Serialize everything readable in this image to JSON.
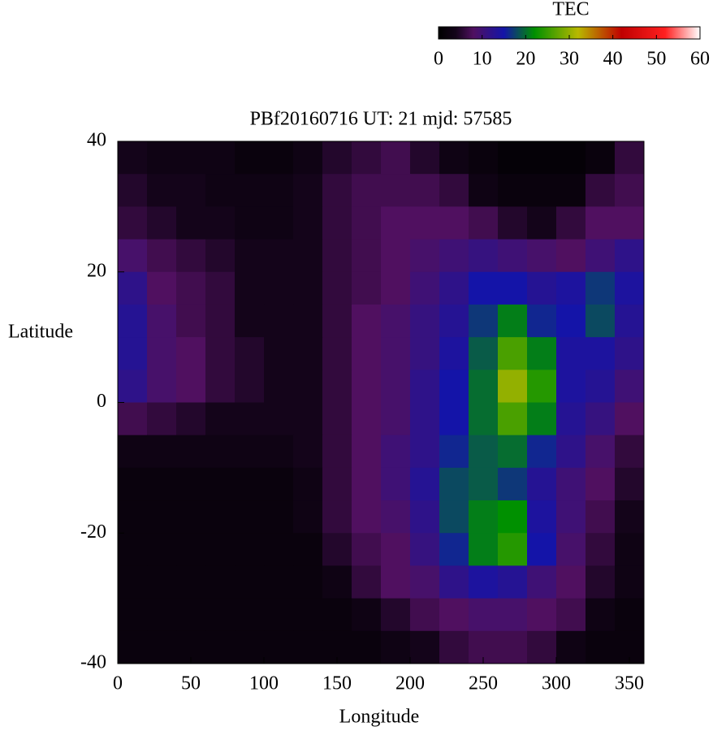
{
  "chart_data": {
    "type": "heatmap",
    "title": "PBf20160716  UT: 21  mjd: 57585",
    "xlabel": "Longitude",
    "ylabel": "Latitude",
    "colorbar_label": "TEC",
    "x": [
      10,
      30,
      50,
      70,
      90,
      110,
      130,
      150,
      170,
      190,
      210,
      230,
      250,
      270,
      290,
      310,
      330,
      350
    ],
    "y": [
      37.5,
      32.5,
      27.5,
      22.5,
      17.5,
      12.5,
      7.5,
      2.5,
      -2.5,
      -7.5,
      -12.5,
      -17.5,
      -22.5,
      -27.5,
      -32.5,
      -37.5
    ],
    "z": [
      [
        4,
        3,
        3,
        3,
        2,
        2,
        3,
        5,
        6,
        7,
        5,
        3,
        2,
        1,
        1,
        1,
        2,
        6
      ],
      [
        5,
        4,
        4,
        3,
        3,
        3,
        4,
        6,
        7,
        7,
        7,
        6,
        3,
        2,
        2,
        2,
        6,
        7
      ],
      [
        6,
        5,
        4,
        4,
        3,
        3,
        4,
        6,
        7,
        8,
        8,
        8,
        7,
        5,
        4,
        6,
        8,
        8
      ],
      [
        9,
        7,
        6,
        5,
        4,
        4,
        4,
        6,
        7,
        8,
        9,
        10,
        11,
        10,
        9,
        8,
        10,
        12
      ],
      [
        12,
        8,
        7,
        6,
        4,
        4,
        4,
        6,
        7,
        8,
        10,
        12,
        15,
        15,
        13,
        14,
        17,
        14
      ],
      [
        13,
        9,
        7,
        6,
        4,
        4,
        4,
        6,
        8,
        9,
        11,
        13,
        17,
        21,
        16,
        15,
        18,
        13
      ],
      [
        13,
        9,
        8,
        6,
        5,
        4,
        4,
        6,
        8,
        9,
        11,
        14,
        19,
        26,
        21,
        14,
        14,
        12
      ],
      [
        12,
        9,
        8,
        6,
        5,
        4,
        4,
        6,
        8,
        9,
        12,
        15,
        20,
        30,
        24,
        14,
        13,
        10
      ],
      [
        7,
        6,
        5,
        4,
        4,
        4,
        4,
        6,
        8,
        9,
        12,
        15,
        20,
        26,
        21,
        13,
        11,
        8
      ],
      [
        3,
        3,
        3,
        3,
        3,
        3,
        4,
        6,
        8,
        10,
        12,
        16,
        19,
        20,
        16,
        12,
        9,
        6
      ],
      [
        2,
        2,
        2,
        2,
        2,
        2,
        3,
        6,
        8,
        10,
        13,
        18,
        19,
        17,
        13,
        10,
        8,
        5
      ],
      [
        2,
        2,
        2,
        2,
        2,
        2,
        3,
        6,
        8,
        9,
        12,
        18,
        21,
        22,
        14,
        10,
        7,
        4
      ],
      [
        2,
        2,
        2,
        2,
        2,
        2,
        2,
        5,
        7,
        8,
        11,
        16,
        21,
        24,
        15,
        9,
        6,
        3
      ],
      [
        2,
        2,
        2,
        2,
        2,
        2,
        2,
        3,
        6,
        8,
        9,
        12,
        14,
        13,
        10,
        8,
        5,
        3
      ],
      [
        2,
        2,
        2,
        2,
        2,
        2,
        2,
        2,
        3,
        5,
        7,
        8,
        9,
        9,
        8,
        7,
        3,
        2
      ],
      [
        2,
        2,
        2,
        2,
        2,
        2,
        2,
        2,
        2,
        3,
        4,
        6,
        7,
        7,
        6,
        3,
        2,
        2
      ]
    ],
    "xlim": [
      0,
      360
    ],
    "xticks": [
      0,
      50,
      100,
      150,
      200,
      250,
      300,
      350
    ],
    "ylim": [
      -40,
      40
    ],
    "yticks": [
      -40,
      -20,
      0,
      20,
      40
    ],
    "clim": [
      0,
      60
    ],
    "cticks": [
      0,
      10,
      20,
      30,
      40,
      50,
      60
    ],
    "colorscale": [
      [
        0,
        "#000000"
      ],
      [
        4,
        "#14041a"
      ],
      [
        8,
        "#501060"
      ],
      [
        15,
        "#1414a8"
      ],
      [
        22,
        "#009000"
      ],
      [
        32,
        "#b8b800"
      ],
      [
        42,
        "#c00000"
      ],
      [
        52,
        "#ff2020"
      ],
      [
        60,
        "#ffffff"
      ]
    ]
  }
}
